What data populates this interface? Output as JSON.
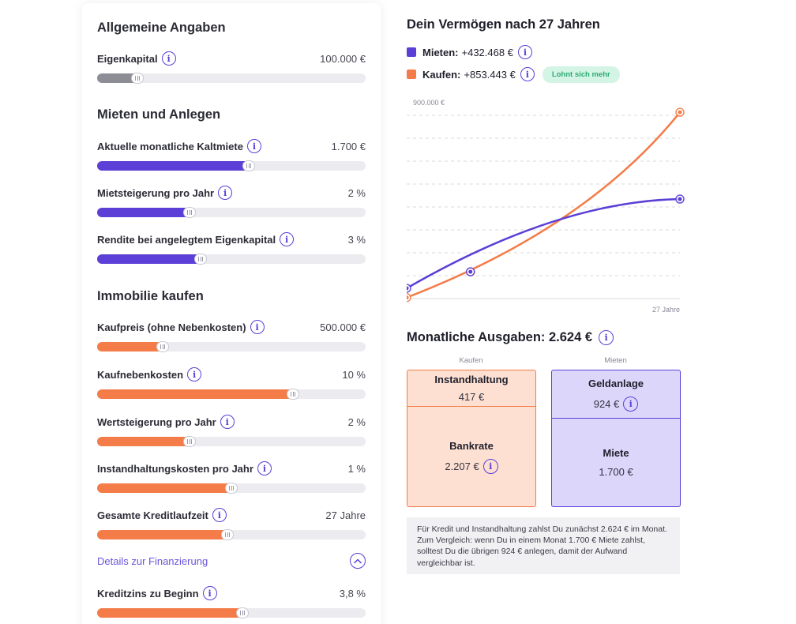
{
  "colors": {
    "accent_purple": "#5b3fd6",
    "accent_orange": "#f47c48",
    "accent_gray": "#8d8d96",
    "badge_bg": "#d4f5e5",
    "badge_text": "#2eaa72",
    "kaufen_box_bg": "#fde0d2",
    "mieten_box_bg": "#dcd6fa"
  },
  "left": {
    "section_allgemein": "Allgemeine Angaben",
    "eigenkapital": {
      "label": "Eigenkapital",
      "value": "100.000 €",
      "level": 0.15
    },
    "section_mieten": "Mieten und Anlegen",
    "kaltmiete": {
      "label": "Aktuelle monatliche Kaltmiete",
      "value": "1.700 €",
      "level": 0.565
    },
    "mietsteigerung": {
      "label": "Mietsteigerung pro Jahr",
      "value": "2 %",
      "level": 0.345
    },
    "rendite": {
      "label": "Rendite bei angelegtem Eigenkapital",
      "value": "3 %",
      "level": 0.385
    },
    "section_kaufen": "Immobilie kaufen",
    "kaufpreis": {
      "label": "Kaufpreis (ohne Nebenkosten)",
      "value": "500.000 €",
      "level": 0.245
    },
    "kaufnebenkosten": {
      "label": "Kaufnebenkosten",
      "value": "10 %",
      "level": 0.73
    },
    "wertsteigerung": {
      "label": "Wertsteigerung pro Jahr",
      "value": "2 %",
      "level": 0.345
    },
    "instandhaltungskosten": {
      "label": "Instandhaltungskosten pro Jahr",
      "value": "1 %",
      "level": 0.5
    },
    "kreditlaufzeit": {
      "label": "Gesamte Kreditlaufzeit",
      "value": "27 Jahre",
      "level": 0.485
    },
    "details_link": "Details zur Finanzierung",
    "kreditzins": {
      "label": "Kreditzins zu Beginn",
      "value": "3,8 %",
      "level": 0.54
    }
  },
  "right": {
    "chart_title": "Dein Vermögen nach 27 Jahren",
    "legend_mieten_label": "Mieten:",
    "legend_mieten_value": "+432.468 €",
    "legend_kaufen_label": "Kaufen:",
    "legend_kaufen_value": "+853.443 €",
    "badge": "Lohnt sich mehr",
    "ausgaben_title": "Monatliche Ausgaben: 2.624 €",
    "col_kaufen": "Kaufen",
    "col_mieten": "Mieten",
    "instandhaltung_label": "Instandhaltung",
    "instandhaltung_value": "417 €",
    "bankrate_label": "Bankrate",
    "bankrate_value": "2.207 €",
    "geldanlage_label": "Geldanlage",
    "geldanlage_value": "924 €",
    "miete_label": "Miete",
    "miete_value": "1.700 €",
    "note": "Für Kredit und Instandhaltung zahlst Du zunächst 2.624 € im Monat. Zum Vergleich: wenn Du in einem Monat 1.700 € Miete zahlst, solltest Du die übrigen 924 € anlegen, damit der Aufwand vergleichbar ist."
  },
  "chart_data": {
    "type": "line",
    "title": "Dein Vermögen nach 27 Jahren",
    "y_tick_label": "900.000 €",
    "x_tick_label": "27 Jahre",
    "ylim": [
      -50000,
      900000
    ],
    "xlim": [
      0,
      27
    ],
    "grid": true,
    "series": [
      {
        "name": "Mieten",
        "color": "#5b3fd6",
        "x": [
          0,
          6.3,
          27
        ],
        "y": [
          0,
          80000,
          432468
        ]
      },
      {
        "name": "Kaufen",
        "color": "#f47c48",
        "x": [
          0,
          6.3,
          27
        ],
        "y": [
          -45000,
          80000,
          853443
        ]
      }
    ]
  }
}
